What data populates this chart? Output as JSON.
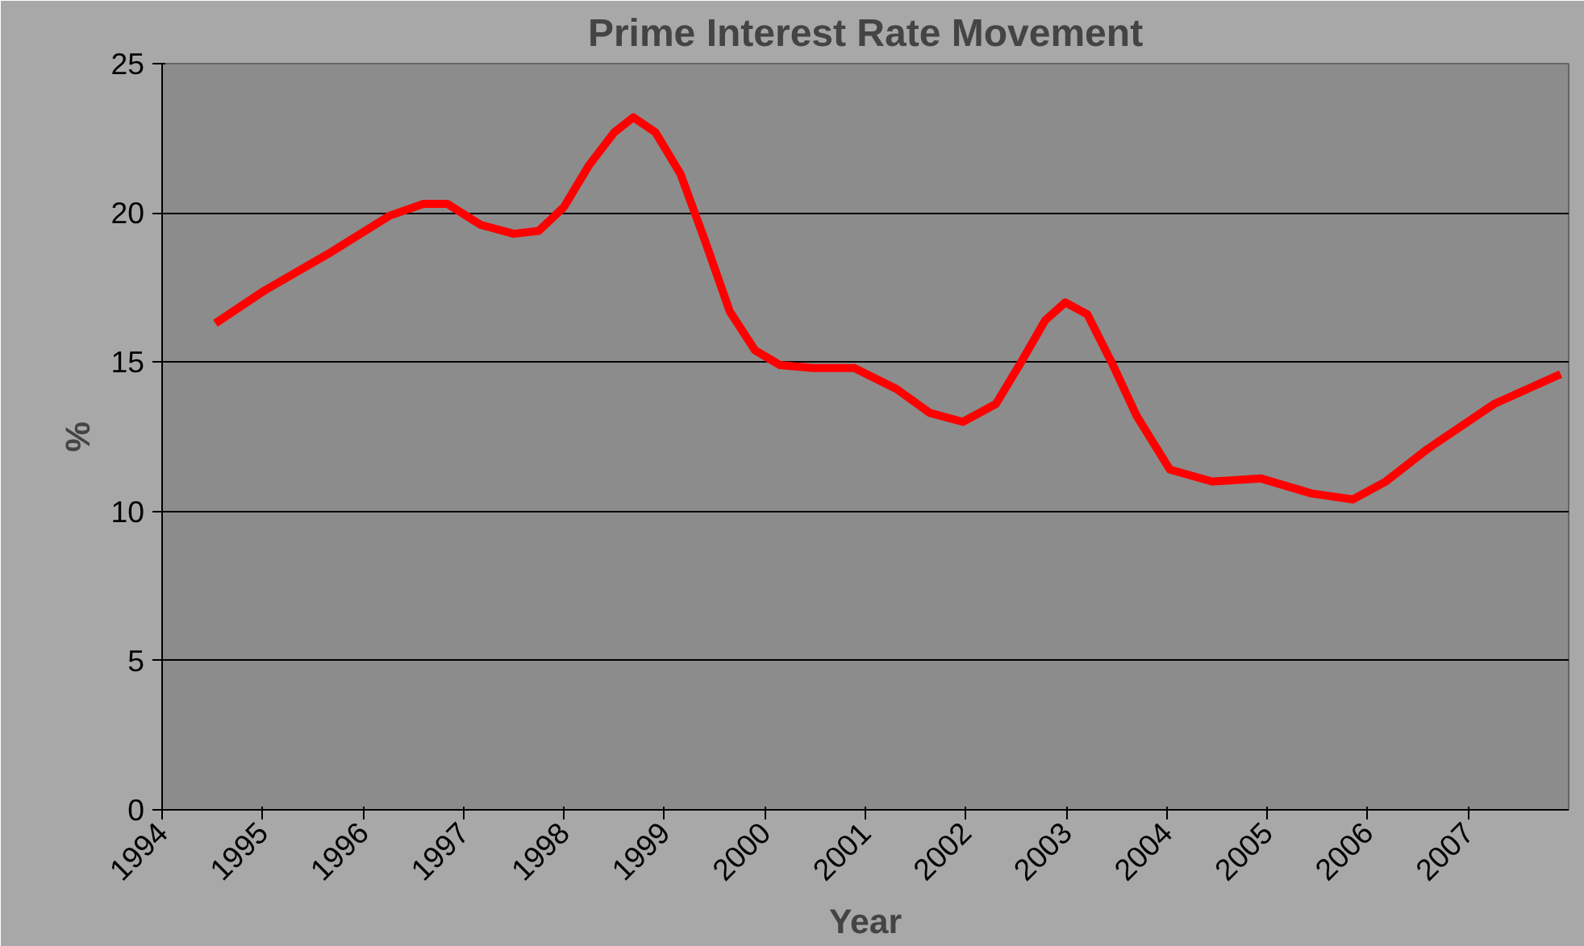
{
  "chart_data": {
    "type": "line",
    "title": "Prime Interest Rate Movement",
    "xlabel": "Year",
    "ylabel": "%",
    "x": [
      1994.53,
      1995.02,
      1995.69,
      1996.26,
      1996.6,
      1996.84,
      1997.17,
      1997.5,
      1997.75,
      1998.0,
      1998.25,
      1998.5,
      1998.69,
      1998.91,
      1999.16,
      1999.4,
      1999.65,
      1999.9,
      2000.15,
      2000.48,
      2000.89,
      2001.31,
      2001.64,
      2001.97,
      2002.3,
      2002.55,
      2002.79,
      2002.99,
      2003.21,
      2003.45,
      2003.7,
      2004.03,
      2004.45,
      2004.94,
      2005.44,
      2005.85,
      2006.18,
      2006.6,
      2007.26,
      2007.92
    ],
    "series": [
      {
        "color": "#ff0000",
        "values": [
          16.3,
          17.4,
          18.7,
          19.9,
          20.3,
          20.3,
          19.6,
          19.3,
          19.4,
          20.2,
          21.6,
          22.7,
          23.2,
          22.7,
          21.3,
          19.1,
          16.7,
          15.4,
          14.9,
          14.8,
          14.8,
          14.1,
          13.3,
          13.0,
          13.6,
          15.0,
          16.4,
          17.0,
          16.6,
          15.0,
          13.2,
          11.4,
          11.0,
          11.1,
          10.6,
          10.4,
          11.0,
          12.1,
          13.6,
          14.6
        ]
      }
    ],
    "xlim": [
      1994,
      2008
    ],
    "xticks": [
      1994,
      1995,
      1996,
      1997,
      1998,
      1999,
      2000,
      2001,
      2002,
      2003,
      2004,
      2005,
      2006,
      2007
    ],
    "ylim": [
      0,
      25
    ],
    "yticks": [
      0,
      5,
      10,
      15,
      20,
      25
    ],
    "grid": "y",
    "marker": "none",
    "line_style": "solid"
  }
}
